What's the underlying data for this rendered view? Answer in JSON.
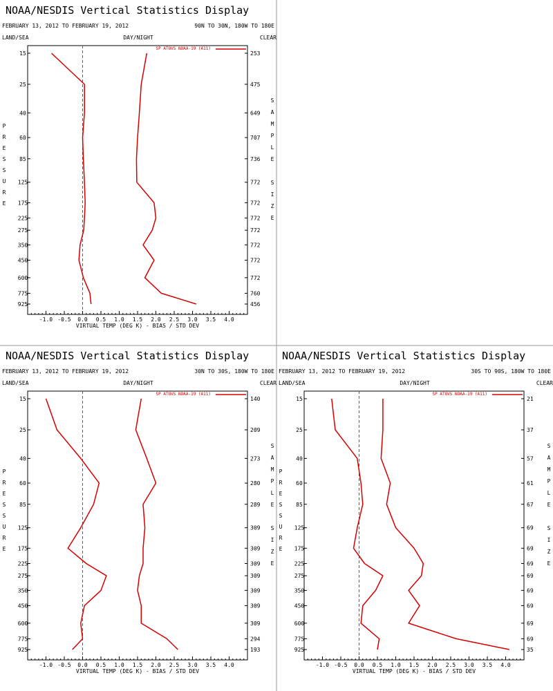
{
  "colors": {
    "profile": "#d40000",
    "axis": "#000000",
    "zero_line": "#555588",
    "divider": "#999999"
  },
  "chart_data": [
    {
      "type": "line",
      "title": "NOAA/NESDIS Vertical Statistics Display",
      "date_range": "FEBRUARY 13, 2012 TO FEBRUARY 19, 2012",
      "region": "90N TO 30N, 180W TO 180E",
      "label_left": "LAND/SEA",
      "label_center": "DAY/NIGHT",
      "label_right": "CLEAR",
      "legend": "SP ATOVS NOAA-19 (A11)",
      "xlabel": "VIRTUAL TEMP (DEG K) - BIAS / STD DEV",
      "ylabel": "PRESSURE",
      "y2label": "SAMPLE SIZE",
      "xlim": [
        -1.5,
        4.5
      ],
      "x_ticks": [
        "-1.0",
        "-0.5",
        "0.0",
        "0.5",
        "1.0",
        "1.5",
        "2.0",
        "2.5",
        "3.0",
        "3.5",
        "4.0"
      ],
      "pressure_levels": [
        "15",
        "25",
        "40",
        "60",
        "85",
        "125",
        "175",
        "225",
        "275",
        "350",
        "450",
        "600",
        "775",
        "925"
      ],
      "sample_size": [
        "253",
        "475",
        "649",
        "707",
        "736",
        "772",
        "772",
        "772",
        "772",
        "772",
        "772",
        "772",
        "760",
        "456"
      ],
      "series": [
        {
          "values": [
            -0.85,
            0.05,
            0.05,
            0.0,
            0.02,
            0.05,
            0.07,
            0.05,
            0.03,
            -0.07,
            -0.1,
            0.02,
            0.2,
            0.23
          ]
        },
        {
          "values": [
            1.75,
            1.6,
            1.55,
            1.5,
            1.47,
            1.48,
            1.95,
            2.0,
            1.9,
            1.65,
            1.95,
            1.7,
            2.15,
            3.1
          ]
        }
      ]
    },
    {
      "type": "line",
      "title": "NOAA/NESDIS Vertical Statistics Display",
      "date_range": "FEBRUARY 13, 2012 TO FEBRUARY 19, 2012",
      "region": "30N TO 30S, 180W TO 180E",
      "label_left": "LAND/SEA",
      "label_center": "DAY/NIGHT",
      "label_right": "CLEAR",
      "legend": "SP ATOVS NOAA-19 (A11)",
      "xlabel": "VIRTUAL TEMP (DEG K) - BIAS / STD DEV",
      "ylabel": "PRESSURE",
      "y2label": "SAMPLE SIZE",
      "xlim": [
        -1.5,
        4.5
      ],
      "x_ticks": [
        "-1.0",
        "-0.5",
        "0.0",
        "0.5",
        "1.0",
        "1.5",
        "2.0",
        "2.5",
        "3.0",
        "3.5",
        "4.0"
      ],
      "pressure_levels": [
        "15",
        "25",
        "40",
        "60",
        "85",
        "125",
        "175",
        "225",
        "275",
        "350",
        "450",
        "600",
        "775",
        "925"
      ],
      "sample_size": [
        "140",
        "209",
        "273",
        "280",
        "289",
        "309",
        "309",
        "309",
        "309",
        "309",
        "309",
        "309",
        "294",
        "193"
      ],
      "series": [
        {
          "values": [
            -1.0,
            -0.7,
            -0.05,
            0.45,
            0.3,
            -0.05,
            -0.4,
            0.1,
            0.65,
            0.5,
            0.05,
            -0.05,
            0.0,
            -0.28
          ]
        },
        {
          "values": [
            1.6,
            1.45,
            1.75,
            2.0,
            1.65,
            1.7,
            1.65,
            1.65,
            1.55,
            1.5,
            1.6,
            1.6,
            2.3,
            2.6
          ]
        }
      ]
    },
    {
      "type": "line",
      "title": "NOAA/NESDIS Vertical Statistics Display",
      "date_range": "FEBRUARY 13, 2012 TO FEBRUARY 19, 2012",
      "region": "30S TO 90S, 180W TO 180E",
      "label_left": "LAND/SEA",
      "label_center": "DAY/NIGHT",
      "label_right": "CLEAR",
      "legend": "SP ATOVS NOAA-19 (A11)",
      "xlabel": "VIRTUAL TEMP (DEG K) - BIAS / STD DEV",
      "ylabel": "PRESSURE",
      "y2label": "SAMPLE SIZE",
      "xlim": [
        -1.5,
        4.5
      ],
      "x_ticks": [
        "-1.0",
        "-0.5",
        "0.0",
        "0.5",
        "1.0",
        "1.5",
        "2.0",
        "2.5",
        "3.0",
        "3.5",
        "4.0"
      ],
      "pressure_levels": [
        "15",
        "25",
        "40",
        "60",
        "85",
        "125",
        "175",
        "225",
        "275",
        "350",
        "450",
        "600",
        "775",
        "925"
      ],
      "sample_size": [
        "21",
        "37",
        "57",
        "61",
        "67",
        "69",
        "69",
        "69",
        "69",
        "69",
        "69",
        "69",
        "69",
        "35"
      ],
      "series": [
        {
          "values": [
            -0.75,
            -0.65,
            -0.05,
            0.05,
            0.1,
            -0.05,
            -0.15,
            0.15,
            0.65,
            0.45,
            0.1,
            0.05,
            0.55,
            0.5
          ]
        },
        {
          "values": [
            0.65,
            0.65,
            0.6,
            0.85,
            0.75,
            1.0,
            1.5,
            1.75,
            1.7,
            1.35,
            1.65,
            1.35,
            2.65,
            4.1
          ]
        }
      ]
    }
  ]
}
